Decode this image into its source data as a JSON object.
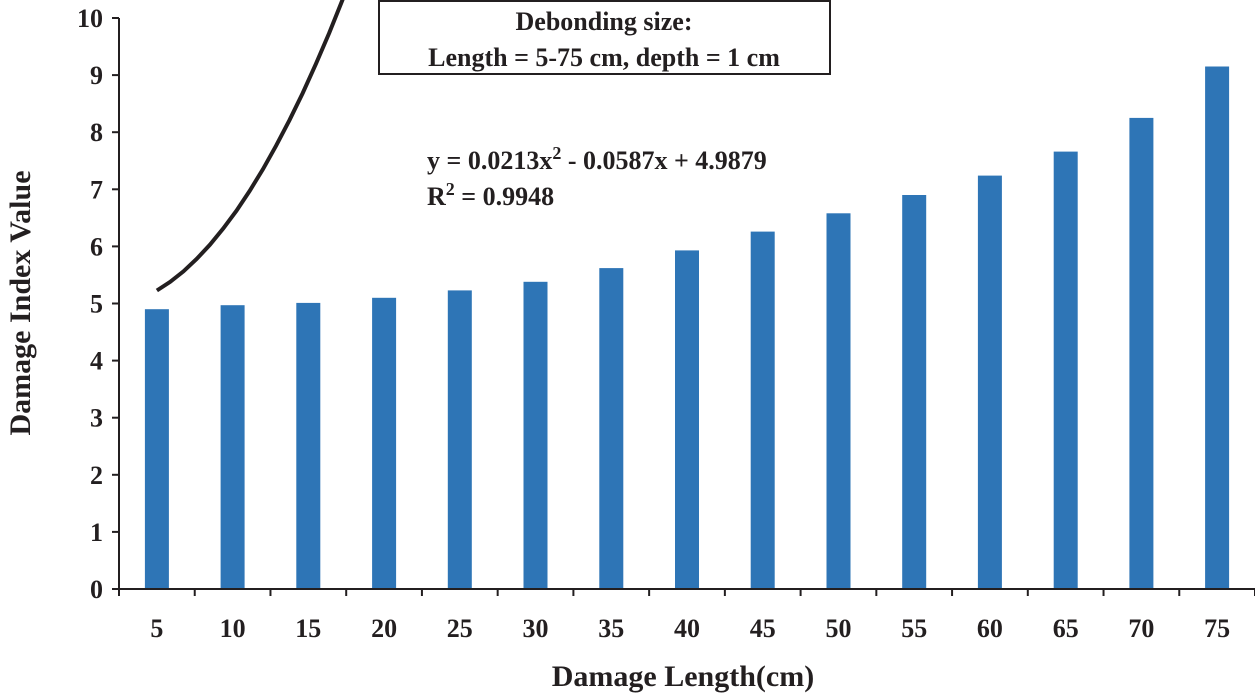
{
  "chart_data": {
    "type": "bar",
    "xlabel": "Damage Length(cm)",
    "ylabel": "Damage Index Value",
    "categories": [
      "5",
      "10",
      "15",
      "20",
      "25",
      "30",
      "35",
      "40",
      "45",
      "50",
      "55",
      "60",
      "65",
      "70",
      "75"
    ],
    "x": [
      5,
      10,
      15,
      20,
      25,
      30,
      35,
      40,
      45,
      50,
      55,
      60,
      65,
      70,
      75
    ],
    "values": [
      4.9,
      4.97,
      5.01,
      5.1,
      5.23,
      5.38,
      5.62,
      5.93,
      6.26,
      6.58,
      6.9,
      7.24,
      7.66,
      8.25,
      9.15
    ],
    "yticks": [
      "0",
      "1",
      "2",
      "3",
      "4",
      "5",
      "6",
      "7",
      "8",
      "9",
      "10"
    ],
    "ylim": [
      0,
      10
    ],
    "grid": false,
    "legend": "none",
    "bar_color": "#2e75b6",
    "trendline": {
      "type": "polynomial",
      "coefficients": [
        0.0213,
        -0.0587,
        4.9879
      ],
      "color": "#231f20",
      "arrow": true
    },
    "annotations": {
      "box_line1": "Debonding size:",
      "box_line2": "Length = 5-75 cm, depth = 1 cm",
      "equation_prefix": "y = 0.0213x",
      "equation_exp": "2",
      "equation_suffix": " - 0.0587x + 4.9879",
      "r2_prefix": "R",
      "r2_exp": "2",
      "r2_suffix": " = 0.9948"
    }
  }
}
